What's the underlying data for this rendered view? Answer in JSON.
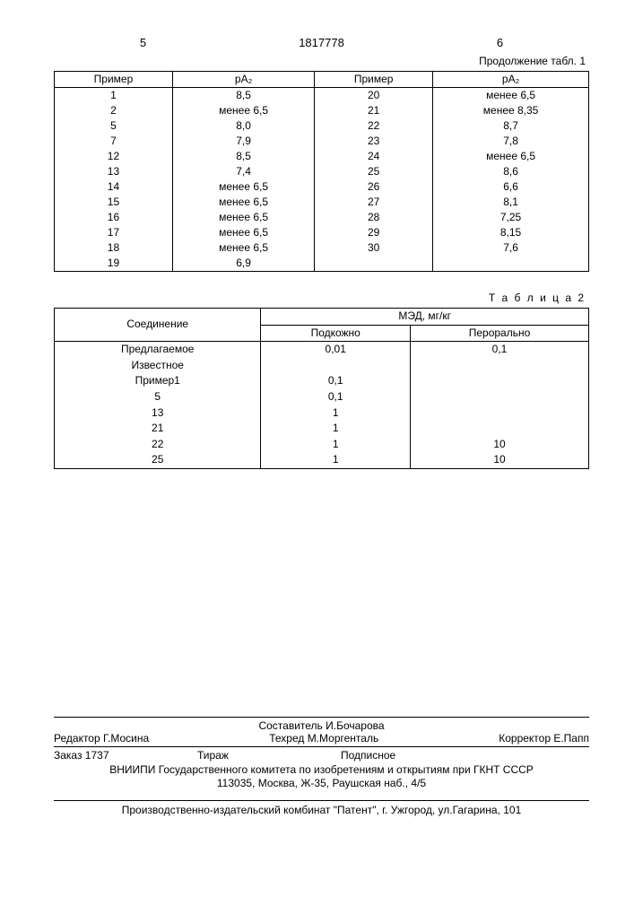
{
  "header": {
    "page_left": "5",
    "doc_number": "1817778",
    "page_right": "6"
  },
  "table1": {
    "caption": "Продолжение табл. 1",
    "columns": [
      "Пример",
      "pA₂",
      "Пример",
      "pA₂"
    ],
    "rows": [
      [
        "1",
        "8,5",
        "20",
        "менее 6,5"
      ],
      [
        "2",
        "менее 6,5",
        "21",
        "менее 8,35"
      ],
      [
        "5",
        "8,0",
        "22",
        "8,7"
      ],
      [
        "7",
        "7,9",
        "23",
        "7,8"
      ],
      [
        "12",
        "8,5",
        "24",
        "менее 6,5"
      ],
      [
        "13",
        "7,4",
        "25",
        "8,6"
      ],
      [
        "14",
        "менее 6,5",
        "26",
        "6,6"
      ],
      [
        "15",
        "менее 6,5",
        "27",
        "8,1"
      ],
      [
        "16",
        "менее 6,5",
        "28",
        "7,25"
      ],
      [
        "17",
        "менее 6,5",
        "29",
        "8,15"
      ],
      [
        "18",
        "менее 6,5",
        "30",
        "7,6"
      ],
      [
        "19",
        "6,9",
        "",
        ""
      ]
    ]
  },
  "table2": {
    "caption": "Т а б л и ц а 2",
    "header_top": [
      "Соединение",
      "МЭД, мг/кг"
    ],
    "header_sub": [
      "Подкожно",
      "Перорально"
    ],
    "rows": [
      [
        "Предлагаемое",
        "0,01",
        "0,1"
      ],
      [
        "Известное",
        "",
        ""
      ],
      [
        "Пример1",
        "0,1",
        ""
      ],
      [
        "5",
        "0,1",
        ""
      ],
      [
        "13",
        "1",
        ""
      ],
      [
        "21",
        "1",
        ""
      ],
      [
        "22",
        "1",
        "10"
      ],
      [
        "25",
        "1",
        "10"
      ]
    ]
  },
  "footer": {
    "composer": "Составитель И.Бочарова",
    "editor": "Редактор Г.Мосина",
    "techred": "Техред М.Моргенталь",
    "corrector": "Корректор Е.Папп",
    "order": "Заказ 1737",
    "tirazh": "Тираж",
    "subscription": "Подписное",
    "org1": "ВНИИПИ Государственного комитета по изобретениям и открытиям при ГКНТ СССР",
    "org2": "113035, Москва, Ж-35, Раушская наб., 4/5",
    "publisher": "Производственно-издательский комбинат \"Патент\", г. Ужгород, ул.Гагарина, 101"
  }
}
